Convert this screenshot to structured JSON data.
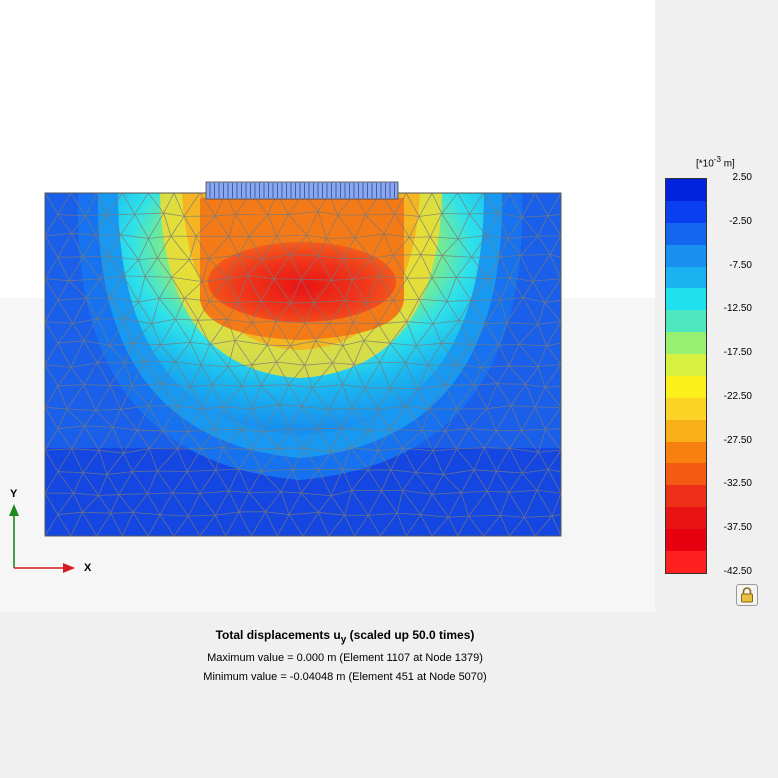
{
  "plot": {
    "x_axis_label": "X",
    "y_axis_label": "Y"
  },
  "legend": {
    "unit_prefix": "[*10",
    "unit_exp": "-3",
    "unit_suffix": " m]",
    "ticks": [
      "2.50",
      "-2.50",
      "-7.50",
      "-12.50",
      "-17.50",
      "-22.50",
      "-27.50",
      "-32.50",
      "-37.50",
      "-42.50"
    ],
    "colors": [
      "#0022dd",
      "#0a3ff0",
      "#1566ee",
      "#1890f0",
      "#1cb2f2",
      "#1ee0ee",
      "#4ee8c0",
      "#98f070",
      "#d8f040",
      "#fcf01c",
      "#fcd428",
      "#f8b018",
      "#f88010",
      "#f45a14",
      "#ee3018",
      "#e81414",
      "#e60010",
      "#ff2020"
    ]
  },
  "caption": {
    "title_main": "Total displacements u",
    "title_sub": "y",
    "title_suffix": " (scaled up 50.0 times)",
    "max_line": "Maximum value = 0.000 m (Element 1107 at Node 1379)",
    "min_line": "Minimum value = -0.04048 m (Element 451 at Node 5070)"
  },
  "colors": {
    "axis_y": "#1e8a1e",
    "axis_x": "#d41c1c",
    "mesh": "#7a7a7a"
  },
  "icons": {
    "lock": "lock-icon"
  }
}
